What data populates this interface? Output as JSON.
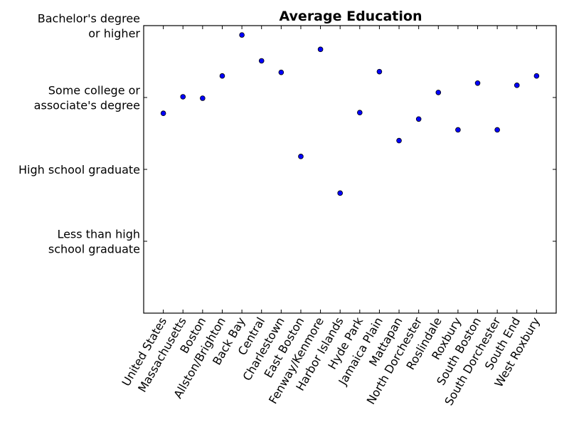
{
  "chart_data": {
    "type": "scatter",
    "title": "Average Education",
    "xlabel": "",
    "ylabel": "",
    "categories": [
      "United States",
      "Massachusetts",
      "Boston",
      "Allston/Brighton",
      "Back Bay",
      "Central",
      "Charlestown",
      "East Boston",
      "Fenway/Kenmore",
      "Harbor Islands",
      "Hyde Park",
      "Jamaica Plain",
      "Mattapan",
      "North Dorchester",
      "Roslindale",
      "Roxbury",
      "South Boston",
      "South Dorchester",
      "South End",
      "West Roxbury"
    ],
    "values": [
      2.78,
      3.01,
      2.99,
      3.3,
      3.87,
      3.51,
      3.35,
      2.18,
      3.67,
      1.67,
      2.79,
      3.36,
      2.4,
      2.7,
      3.07,
      2.55,
      3.2,
      2.55,
      3.17,
      3.3
    ],
    "ylim": [
      0,
      4
    ],
    "yticks": [
      {
        "value": 1,
        "lines": [
          "Less than high",
          "school graduate"
        ]
      },
      {
        "value": 2,
        "lines": [
          "High school graduate"
        ]
      },
      {
        "value": 3,
        "lines": [
          "Some college or",
          "associate's degree"
        ]
      },
      {
        "value": 4,
        "lines": [
          "Bachelor's degree",
          "or higher"
        ]
      }
    ],
    "grid": false,
    "marker_color": "#0000ff"
  }
}
